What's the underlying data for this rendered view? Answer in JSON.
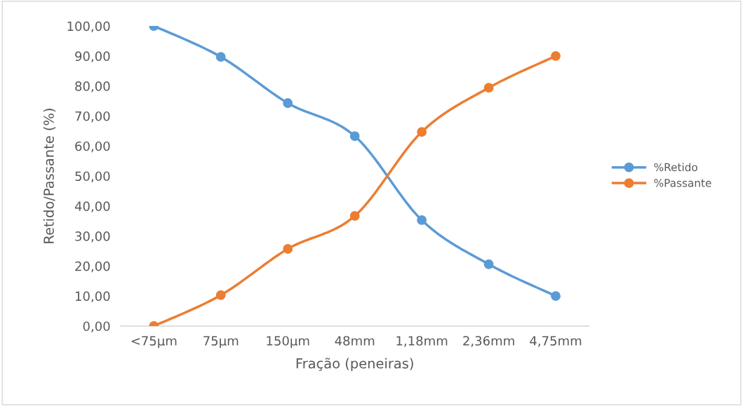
{
  "chart_data": {
    "type": "line",
    "xlabel": "Fração (peneiras)",
    "ylabel": "Retido/Passante (%)",
    "categories": [
      "<75µm",
      "75µm",
      "150µm",
      "48mm",
      "1,18mm",
      "2,36mm",
      "4,75mm"
    ],
    "series": [
      {
        "name": "%Retido",
        "color": "#5b9bd5",
        "values": [
          100,
          89.7,
          74.3,
          63.3,
          35.3,
          20.6,
          10.0
        ]
      },
      {
        "name": "%Passante",
        "color": "#ed7d31",
        "values": [
          0,
          10.3,
          25.7,
          36.7,
          64.7,
          79.4,
          90.0
        ]
      }
    ],
    "ylim": [
      0,
      100
    ],
    "yticks": [
      {
        "value": 0,
        "label": "0,00"
      },
      {
        "value": 10,
        "label": "10,00"
      },
      {
        "value": 20,
        "label": "20,00"
      },
      {
        "value": 30,
        "label": "30,00"
      },
      {
        "value": 40,
        "label": "40,00"
      },
      {
        "value": 50,
        "label": "50,00"
      },
      {
        "value": 60,
        "label": "60,00"
      },
      {
        "value": 70,
        "label": "70,00"
      },
      {
        "value": 80,
        "label": "80,00"
      },
      {
        "value": 90,
        "label": "90,00"
      },
      {
        "value": 100,
        "label": "100,00"
      }
    ],
    "grid": false,
    "legend": "right",
    "marker": "circle",
    "line_style": "solid"
  }
}
